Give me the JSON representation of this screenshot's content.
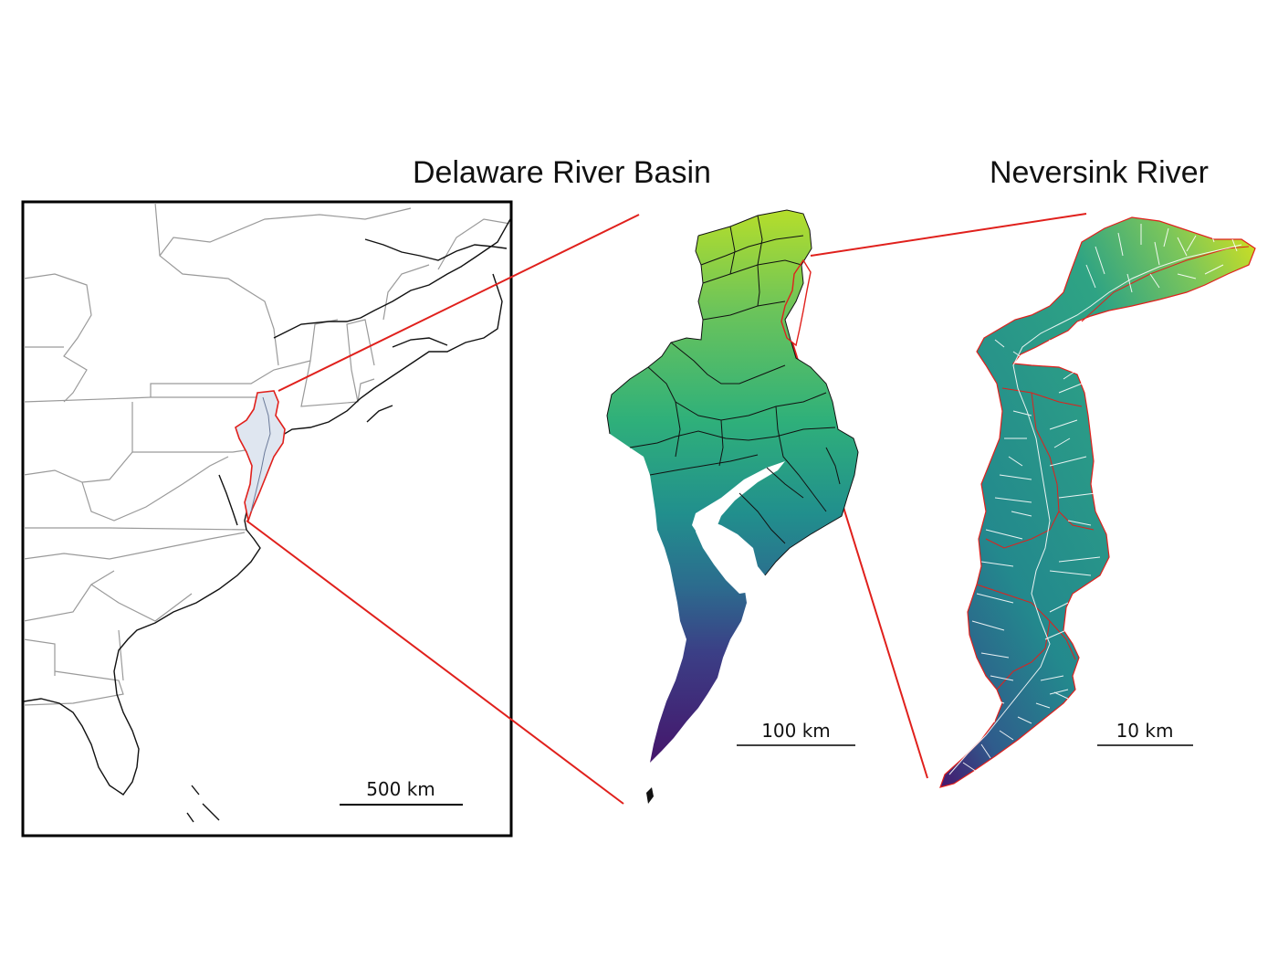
{
  "titles": {
    "basin": "Delaware River Basin",
    "neversink": "Neversink River"
  },
  "scale_bars": {
    "overview": "500 km",
    "basin": "100 km",
    "neversink": "10 km"
  },
  "colors": {
    "highlight": "#e0201c",
    "basin_fill": "#dfe6f0",
    "elevation_high": "#b8de29",
    "elevation_mid": "#2a9a8a",
    "elevation_low": "#3b1f6e",
    "streams": "#ffffff"
  }
}
